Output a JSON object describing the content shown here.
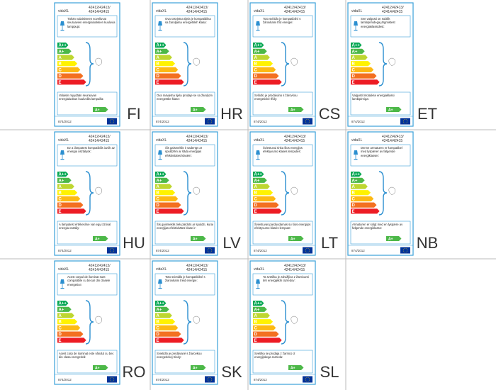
{
  "brand": "vidaXL",
  "model_lines": [
    "42412/42413/",
    "42414/42415"
  ],
  "energy_classes": [
    "A++",
    "A+",
    "A",
    "B",
    "C",
    "D",
    "E"
  ],
  "class_colors": [
    "#00a651",
    "#4cb848",
    "#bed630",
    "#fff200",
    "#fdb913",
    "#f37021",
    "#ed1c24"
  ],
  "selected_class": "A+",
  "regulation": "874/2012",
  "labels": [
    {
      "language": "FI",
      "top_text": "Tähän valaisimeen sovelluvat seuraavien energialuokkien kuuluvia lamppuja:",
      "bottom_text": "Valaisin myydään seuraavan energialuokan kuuluvilla lampuilla:"
    },
    {
      "language": "HR",
      "top_text": "Ova rasvjetna tijela je kompatibilna sa žaruljama energetskih klasa:",
      "bottom_text": "Ova rasvjetna tijela prodaje se sa žaruljom energetske klase:"
    },
    {
      "language": "CS",
      "top_text": "Toto svítidlo je kompatibilní s žárovkami tříd energie:",
      "bottom_text": "Svítidlo je prodáváno s žárovkou energetické třídy:"
    },
    {
      "language": "ET",
      "top_text": "See valgusti on sobilik lambipirnidega järgmistest energiaklassidest:",
      "bottom_text": "Valgustit müüakse energiaklassi lambipirniga:"
    },
    {
      "language": "HU",
      "top_text": "Ez a lámpatest kompatibilis izzók az energia osztályok:",
      "bottom_text": "A lámpatest értékesítve van egy izzóval energia osztály:"
    },
    {
      "language": "LV",
      "top_text": "Šis gaismeklis ir saderīgs ar spuldzēm ar šāda enerģijas efektivitātes klasēm:",
      "bottom_text": "Šis gaismeklis tiek pārdots ar spuldzi, kurai enerģijas efektivitātes klase ir:"
    },
    {
      "language": "LT",
      "top_text": "Šviestuvui tinka šios energijos efektyvumo klasės lemputės:",
      "bottom_text": "Šviestuvas parduodamas su šios energijos efektyvumo klasės lempute:"
    },
    {
      "language": "NB",
      "top_text": "Denne armaturen er kompatibel med lyspærer av følgende energiklasser:",
      "bottom_text": "Armaturen er solgt med en lyspære av følgende energiklasse:"
    },
    {
      "language": "RO",
      "top_text": "Acest corpul de iluminat sunt compatibile cu becuri din clasele energetice:",
      "bottom_text": "Acest corp de iluminat este vândut cu bec din clasa energetică:"
    },
    {
      "language": "SK",
      "top_text": "Toto svietidlo je kompatibilné s žiarovkami tried energie:",
      "bottom_text": "Svietidlo je predávané s žiarovkou energetickej triedy:"
    },
    {
      "language": "SL",
      "top_text": "Ta svetilka je združljiva z žarnicami teh energijskih razredov:",
      "bottom_text": "Svetilka se prodaja z žarnico iz energijskega razreda:"
    }
  ]
}
